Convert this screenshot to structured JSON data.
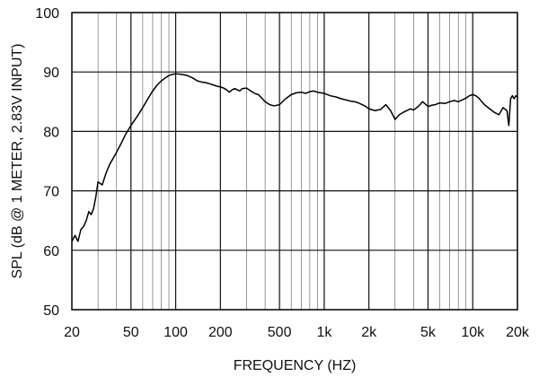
{
  "chart_data": {
    "type": "line",
    "title": "",
    "xlabel": "FREQUENCY  (HZ)",
    "ylabel": "SPL (dB @ 1 METER, 2.83V INPUT)",
    "x_scale": "log",
    "xlim": [
      20,
      20000
    ],
    "ylim": [
      50,
      100
    ],
    "grid": true,
    "x_ticks": [
      {
        "value": 20,
        "label": "20"
      },
      {
        "value": 50,
        "label": "50"
      },
      {
        "value": 100,
        "label": "100"
      },
      {
        "value": 200,
        "label": "200"
      },
      {
        "value": 500,
        "label": "500"
      },
      {
        "value": 1000,
        "label": "1k"
      },
      {
        "value": 2000,
        "label": "2k"
      },
      {
        "value": 5000,
        "label": "5k"
      },
      {
        "value": 10000,
        "label": "10k"
      },
      {
        "value": 20000,
        "label": "20k"
      }
    ],
    "y_ticks": [
      50,
      60,
      70,
      80,
      90,
      100
    ],
    "series": [
      {
        "x": [
          20,
          21,
          22,
          23,
          24,
          25,
          26,
          27,
          28,
          29,
          30,
          32,
          34,
          36,
          38,
          40,
          43,
          46,
          50,
          55,
          60,
          65,
          70,
          75,
          80,
          85,
          90,
          95,
          100,
          110,
          120,
          130,
          140,
          150,
          160,
          170,
          180,
          190,
          200,
          210,
          220,
          230,
          240,
          250,
          260,
          270,
          280,
          300,
          320,
          340,
          360,
          380,
          400,
          430,
          460,
          500,
          550,
          600,
          650,
          700,
          750,
          800,
          850,
          900,
          950,
          1000,
          1100,
          1200,
          1300,
          1400,
          1500,
          1600,
          1700,
          1800,
          1900,
          2000,
          2200,
          2400,
          2600,
          2800,
          3000,
          3200,
          3400,
          3600,
          3800,
          4000,
          4300,
          4600,
          5000,
          5300,
          5600,
          6000,
          6500,
          7000,
          7500,
          8000,
          8500,
          9000,
          9500,
          10000,
          10500,
          11000,
          11500,
          12000,
          13000,
          14000,
          15000,
          16000,
          17000,
          17500,
          18000,
          18500,
          19000,
          19500,
          20000
        ],
        "y": [
          61.5,
          62.5,
          61.5,
          63.5,
          64,
          65,
          66.5,
          66,
          67,
          69,
          71.5,
          71,
          73,
          74.5,
          75.5,
          76.5,
          78,
          79.5,
          81,
          82.5,
          84,
          85.5,
          86.8,
          87.8,
          88.5,
          89,
          89.4,
          89.6,
          89.7,
          89.6,
          89.4,
          89,
          88.5,
          88.3,
          88.2,
          88,
          87.8,
          87.6,
          87.5,
          87.3,
          87,
          86.6,
          87,
          87.2,
          87,
          86.8,
          87.2,
          87.3,
          86.8,
          86.4,
          86.2,
          85.6,
          85,
          84.5,
          84.3,
          84.5,
          85.5,
          86.2,
          86.5,
          86.6,
          86.4,
          86.7,
          86.8,
          86.6,
          86.5,
          86.4,
          86,
          85.8,
          85.5,
          85.3,
          85.1,
          85,
          84.8,
          84.5,
          84.2,
          83.8,
          83.5,
          83.7,
          84.5,
          83.5,
          82,
          82.8,
          83.2,
          83.5,
          83.8,
          83.6,
          84.2,
          85,
          84.2,
          84.4,
          84.5,
          84.8,
          84.7,
          85,
          85.2,
          85,
          85.3,
          85.6,
          86,
          86.2,
          86,
          85.6,
          85,
          84.5,
          83.8,
          83.2,
          82.8,
          84,
          83.5,
          81,
          85.5,
          86,
          85.5,
          86,
          85.8
        ]
      }
    ]
  }
}
